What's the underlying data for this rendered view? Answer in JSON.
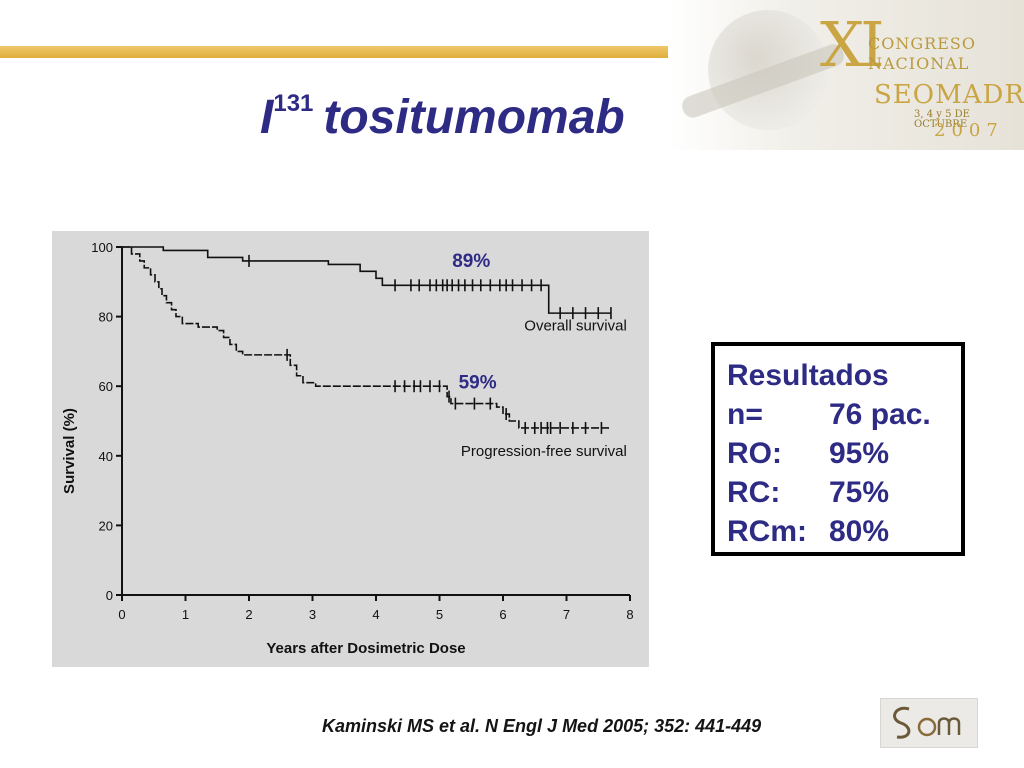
{
  "title": {
    "element": "I",
    "superscript": "131",
    "drug": "tositumomab"
  },
  "banner": {
    "roman": "XI",
    "line1": "CONGRESO",
    "line2": "NACIONAL",
    "line3": "SEOMADRID",
    "dates": "3, 4 y 5 DE OCTUBRE",
    "year": "2007"
  },
  "results": {
    "heading": "Resultados",
    "rows": [
      {
        "label": "n=",
        "value": "76 pac."
      },
      {
        "label": "RO:",
        "value": "95%"
      },
      {
        "label": "RC:",
        "value": "75%"
      },
      {
        "label": "RCm:",
        "value": "80%"
      }
    ]
  },
  "citation": "Kaminski MS et al. N Engl J Med 2005; 352: 441-449",
  "logo_text": "SEOM",
  "colors": {
    "title": "#2e2b85",
    "accent_bar": "#e0ae3c",
    "chart_bg": "#d9d9d9"
  },
  "chart_data": {
    "type": "line",
    "xlabel": "Years after Dosimetric Dose",
    "ylabel": "Survival (%)",
    "xlim": [
      0,
      8
    ],
    "ylim": [
      0,
      100
    ],
    "x_ticks": [
      0,
      1,
      2,
      3,
      4,
      5,
      6,
      7,
      8
    ],
    "y_ticks": [
      0,
      20,
      40,
      60,
      80,
      100
    ],
    "grid": false,
    "annotations": [
      {
        "text": "89%",
        "x": 5.5,
        "y": 96
      },
      {
        "text": "59%",
        "x": 5.6,
        "y": 61
      }
    ],
    "series": [
      {
        "name": "Overall survival",
        "step": true,
        "points": [
          [
            0,
            100
          ],
          [
            0.65,
            99
          ],
          [
            1.35,
            97
          ],
          [
            1.9,
            96
          ],
          [
            3.25,
            95
          ],
          [
            3.75,
            93
          ],
          [
            4.0,
            91
          ],
          [
            4.1,
            89
          ],
          [
            6.7,
            89
          ],
          [
            6.72,
            81
          ],
          [
            7.7,
            81
          ]
        ],
        "censored": [
          2.0,
          4.3,
          4.55,
          4.68,
          4.85,
          4.95,
          5.05,
          5.12,
          5.2,
          5.3,
          5.4,
          5.52,
          5.65,
          5.8,
          5.95,
          6.05,
          6.15,
          6.3,
          6.45,
          6.6,
          6.9,
          7.1,
          7.3,
          7.5,
          7.7
        ]
      },
      {
        "name": "Progression-free survival",
        "step": true,
        "points": [
          [
            0,
            100
          ],
          [
            0.15,
            98
          ],
          [
            0.28,
            96
          ],
          [
            0.35,
            94
          ],
          [
            0.45,
            92
          ],
          [
            0.52,
            90
          ],
          [
            0.58,
            88
          ],
          [
            0.63,
            86
          ],
          [
            0.7,
            84
          ],
          [
            0.78,
            82
          ],
          [
            0.85,
            80
          ],
          [
            0.95,
            78
          ],
          [
            1.2,
            77
          ],
          [
            1.5,
            76
          ],
          [
            1.6,
            74
          ],
          [
            1.7,
            72
          ],
          [
            1.8,
            70
          ],
          [
            1.9,
            69
          ],
          [
            2.5,
            69
          ],
          [
            2.65,
            66
          ],
          [
            2.75,
            63
          ],
          [
            2.85,
            61
          ],
          [
            3.05,
            60
          ],
          [
            5.1,
            60
          ],
          [
            5.12,
            57
          ],
          [
            5.18,
            55
          ],
          [
            5.9,
            54
          ],
          [
            6.0,
            52
          ],
          [
            6.1,
            50
          ],
          [
            6.25,
            48
          ],
          [
            7.7,
            48
          ]
        ],
        "censored": [
          2.6,
          4.3,
          4.45,
          4.6,
          4.7,
          4.85,
          5.0,
          5.15,
          5.25,
          5.55,
          5.8,
          6.05,
          6.35,
          6.5,
          6.6,
          6.7,
          6.75,
          6.9,
          7.1,
          7.3,
          7.55
        ]
      }
    ]
  }
}
